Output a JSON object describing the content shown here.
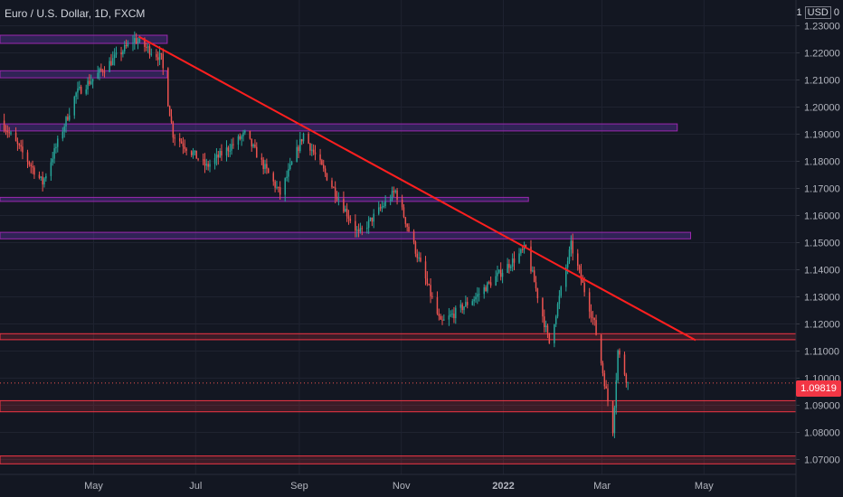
{
  "header": {
    "symbol_title": "Euro / U.S. Dollar, 1D, FXCM"
  },
  "price_scale": {
    "multiplier": "1",
    "currency": "USD",
    "suffix": "0"
  },
  "last_price": {
    "value": "1.09819",
    "color": "#f23645"
  },
  "colors": {
    "background": "#131722",
    "grid": "#1f2330",
    "axis_text": "#b2b5be",
    "candle_up": "#26a69a",
    "candle_down": "#ef5350",
    "trendline": "#ff1f1f",
    "zone_purple_fill": "rgba(103,58,183,0.35)",
    "zone_purple_border": "#9c27b0",
    "zone_red_fill": "rgba(242,54,69,0.18)",
    "zone_red_border": "#f23645"
  },
  "chart_data": {
    "type": "candlestick",
    "title": "Euro / U.S. Dollar, 1D, FXCM",
    "y_axis_ticks": [
      "1.23000",
      "1.22000",
      "1.21000",
      "1.20000",
      "1.19000",
      "1.18000",
      "1.17000",
      "1.16000",
      "1.15000",
      "1.14000",
      "1.13000",
      "1.12000",
      "1.11000",
      "1.10000",
      "1.09000",
      "1.08000",
      "1.07000"
    ],
    "x_axis_ticks": [
      {
        "label": "May",
        "date": "2021-05-01"
      },
      {
        "label": "Jul",
        "date": "2021-07-01"
      },
      {
        "label": "Sep",
        "date": "2021-09-01"
      },
      {
        "label": "Nov",
        "date": "2021-11-01"
      },
      {
        "label": "2022",
        "date": "2022-01-01"
      },
      {
        "label": "Mar",
        "date": "2022-03-01"
      },
      {
        "label": "May",
        "date": "2022-05-01"
      }
    ],
    "ylim": [
      1.0645,
      1.2395
    ],
    "xlim": [
      "2021-03-06",
      "2022-06-25"
    ],
    "price_path": [
      [
        "2021-03-06",
        1.195
      ],
      [
        "2021-03-31",
        1.172
      ],
      [
        "2021-04-20",
        1.205
      ],
      [
        "2021-05-01",
        1.211
      ],
      [
        "2021-05-25",
        1.225
      ],
      [
        "2021-06-10",
        1.218
      ],
      [
        "2021-06-17",
        1.19
      ],
      [
        "2021-07-07",
        1.178
      ],
      [
        "2021-07-30",
        1.19
      ],
      [
        "2021-08-20",
        1.168
      ],
      [
        "2021-09-03",
        1.19
      ],
      [
        "2021-10-06",
        1.153
      ],
      [
        "2021-10-28",
        1.169
      ],
      [
        "2021-11-24",
        1.12
      ],
      [
        "2021-12-15",
        1.13
      ],
      [
        "2022-01-14",
        1.148
      ],
      [
        "2022-01-28",
        1.113
      ],
      [
        "2022-02-10",
        1.149
      ],
      [
        "2022-02-24",
        1.12
      ],
      [
        "2022-03-07",
        1.081
      ],
      [
        "2022-03-10",
        1.11
      ],
      [
        "2022-03-16",
        1.098
      ]
    ],
    "trendline": {
      "start": [
        "2021-05-28",
        1.226
      ],
      "end": [
        "2022-04-26",
        1.114
      ]
    },
    "zones": [
      {
        "color": "purple",
        "start": "2021-03-06",
        "end": "2021-06-14",
        "top": 1.2265,
        "bottom": 1.2235
      },
      {
        "color": "purple",
        "start": "2021-03-06",
        "end": "2021-06-14",
        "top": 1.2134,
        "bottom": 1.2108
      },
      {
        "color": "purple",
        "start": "2021-03-06",
        "end": "2022-04-15",
        "top": 1.1938,
        "bottom": 1.1912
      },
      {
        "color": "purple",
        "start": "2021-03-06",
        "end": "2022-01-16",
        "top": 1.1667,
        "bottom": 1.1652
      },
      {
        "color": "purple",
        "start": "2021-03-06",
        "end": "2022-04-23",
        "top": 1.1538,
        "bottom": 1.1514
      },
      {
        "color": "red",
        "start": "2021-03-06",
        "end": "2022-06-25",
        "top": 1.1164,
        "bottom": 1.1142
      },
      {
        "color": "red",
        "start": "2021-03-06",
        "end": "2022-06-25",
        "top": 1.0917,
        "bottom": 1.0876
      },
      {
        "color": "red",
        "start": "2021-03-06",
        "end": "2022-06-25",
        "top": 1.0713,
        "bottom": 1.0684
      }
    ],
    "last_price": 1.09819
  }
}
